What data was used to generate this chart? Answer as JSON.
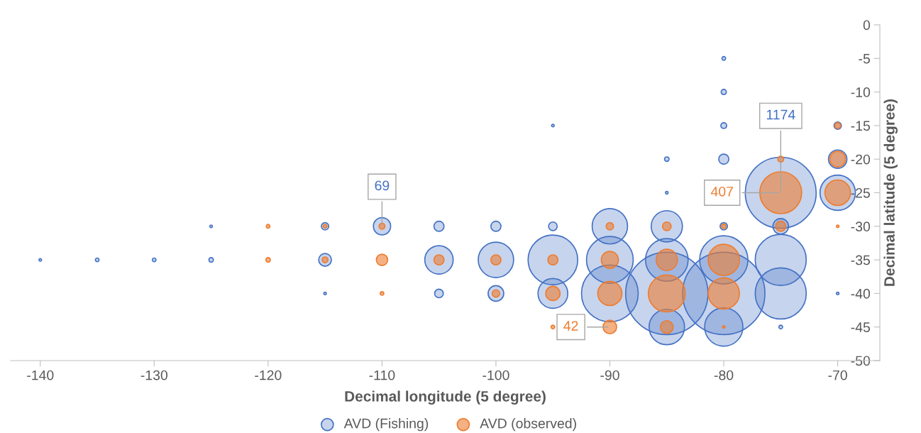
{
  "chart_data": {
    "type": "bubble",
    "xlabel": "Decimal longitude (5 degree)",
    "ylabel": "Decimal latitude (5 degree)",
    "xlim": [
      -142.6,
      -66.3
    ],
    "xticks": [
      -140,
      -130,
      -120,
      -110,
      -100,
      -90,
      -80,
      -70
    ],
    "ylim": [
      -50,
      0
    ],
    "yticks": [
      0,
      -5,
      -10,
      -15,
      -20,
      -25,
      -30,
      -35,
      -40,
      -45,
      -50
    ],
    "grid": false,
    "legend": "bottom",
    "marker": "circle",
    "series": [
      {
        "name": "AVD (Fishing)",
        "color": "#4472c4",
        "x": [
          -140,
          -135,
          -130,
          -125,
          -125,
          -115,
          -115,
          -115,
          -110,
          -105,
          -105,
          -105,
          -100,
          -100,
          -100,
          -95,
          -95,
          -95,
          -95,
          -90,
          -90,
          -90,
          -85,
          -85,
          -85,
          -85,
          -85,
          -85,
          -80,
          -80,
          -80,
          -80,
          -80,
          -80,
          -80,
          -80,
          -75,
          -75,
          -75,
          -75,
          -75,
          -70,
          -70,
          -70,
          -70
        ],
        "values": [
          -35,
          -35,
          -35,
          -30,
          -35,
          -30,
          -35,
          -40,
          -30,
          -30,
          -35,
          -40,
          -30,
          -35,
          -40,
          -15,
          -30,
          -35,
          -40,
          -30,
          -35,
          -40,
          -20,
          -25,
          -30,
          -35,
          -40,
          -45,
          -5,
          -10,
          -15,
          -20,
          -30,
          -35,
          -40,
          -45,
          -25,
          -30,
          -35,
          -40,
          -45,
          -15,
          -20,
          -25,
          -40
        ],
        "sizes": [
          0.001,
          0.002,
          0.002,
          0.001,
          0.003,
          0.008,
          0.024,
          0.001,
          0.044,
          0.015,
          0.119,
          0.011,
          0.015,
          0.185,
          0.036,
          0.001,
          0.011,
          0.364,
          0.131,
          0.185,
          0.323,
          0.475,
          0.003,
          0.001,
          0.144,
          0.268,
          1,
          0.185,
          0.002,
          0.004,
          0.005,
          0.015,
          0.008,
          0.344,
          1,
          0.216,
          0.743,
          0.036,
          0.385,
          0.385,
          0.002,
          0.008,
          0.05,
          0.185,
          0.001
        ]
      },
      {
        "name": "AVD (observed)",
        "color": "#ed7d31",
        "x": [
          -120,
          -120,
          -115,
          -115,
          -110,
          -110,
          -110,
          -100,
          -105,
          -100,
          -95,
          -95,
          -95,
          -90,
          -90,
          -90,
          -90,
          -85,
          -85,
          -85,
          -85,
          -80,
          -80,
          -80,
          -80,
          -75,
          -75,
          -75,
          -70,
          -70,
          -70,
          -70
        ],
        "values": [
          -30,
          -35,
          -30,
          -35,
          -30,
          -35,
          -40,
          -35,
          -35,
          -40,
          -35,
          -40,
          -45,
          -30,
          -35,
          -40,
          -45,
          -30,
          -35,
          -40,
          -45,
          -30,
          -35,
          -40,
          -45,
          -20,
          -25,
          -30,
          -15,
          -20,
          -25,
          -30
        ],
        "sizes": [
          0.002,
          0.003,
          0.002,
          0.005,
          0.005,
          0.019,
          0.002,
          0.015,
          0.015,
          0.008,
          0.015,
          0.03,
          0.002,
          0.008,
          0.043,
          0.086,
          0.027,
          0.011,
          0.067,
          0.201,
          0.024,
          0.003,
          0.144,
          0.144,
          0.001,
          0.005,
          0.258,
          0.015,
          0.005,
          0.036,
          0.096,
          0.001
        ]
      }
    ],
    "annotations": [
      {
        "text": "69",
        "x": -110,
        "y": -30
      },
      {
        "text": "1174",
        "x": -75,
        "y": -25
      },
      {
        "text": "42",
        "x": -90,
        "y": -45
      },
      {
        "text": "407",
        "x": -75,
        "y": -25
      }
    ]
  }
}
